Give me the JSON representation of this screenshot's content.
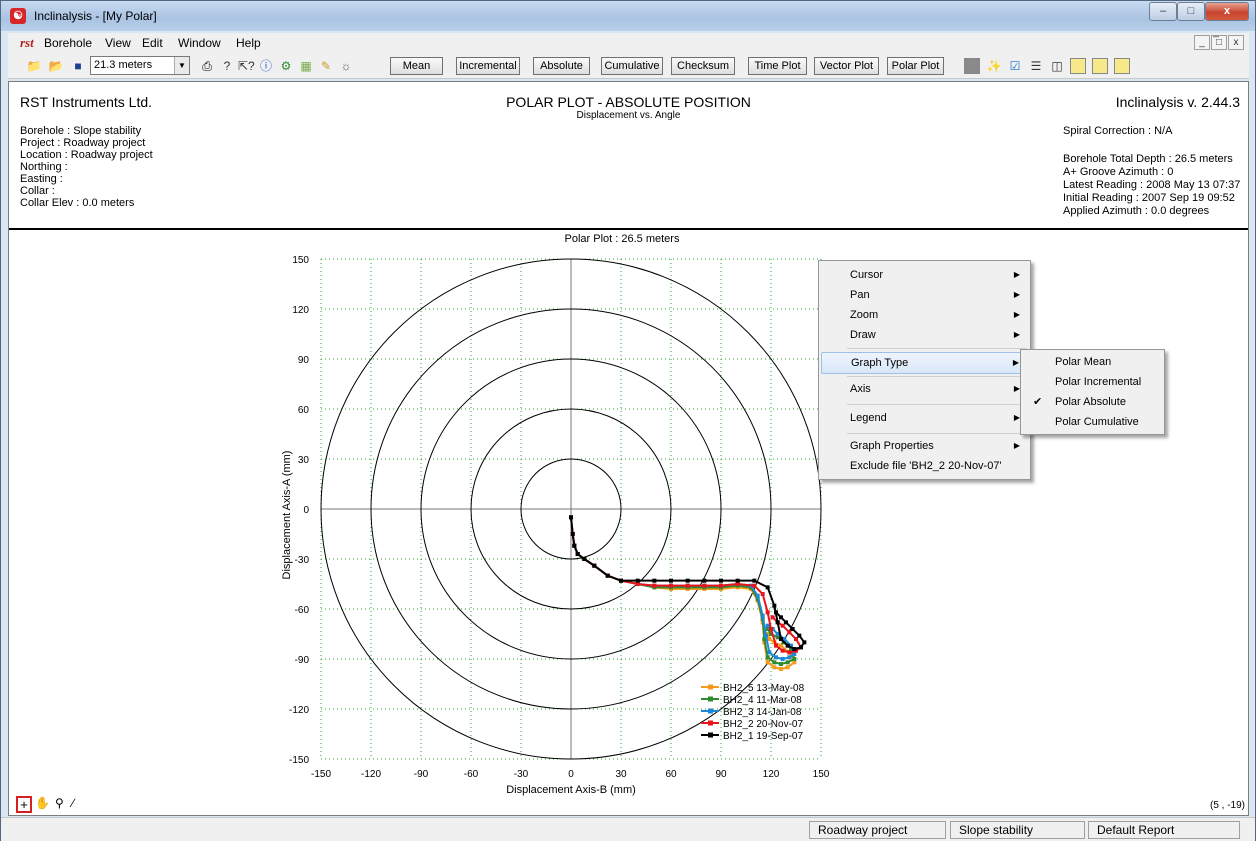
{
  "window": {
    "title": "Inclinalysis - [My Polar]",
    "app_icon": "inclinalysis-icon",
    "controls": {
      "minimize": "–",
      "maximize": "□",
      "close": "x"
    }
  },
  "menubar": {
    "logo": "rst",
    "items": [
      "Borehole",
      "View",
      "Edit",
      "Window",
      "Help"
    ],
    "mdi_controls": [
      "_",
      "̅□",
      "x"
    ]
  },
  "toolbar": {
    "depth_select": "21.3 meters",
    "buttons": [
      "Mean",
      "Incremental",
      "Absolute",
      "Cumulative",
      "Checksum",
      "Time Plot",
      "Vector Plot",
      "Polar Plot"
    ]
  },
  "report_header": {
    "company": "RST Instruments Ltd.",
    "title": "POLAR PLOT - ABSOLUTE POSITION",
    "subtitle": "Displacement vs. Angle",
    "version": "Inclinalysis v. 2.44.3",
    "left_lines": [
      "Borehole : Slope stability",
      "Project : Roadway project",
      "Location : Roadway project",
      "Northing :",
      "Easting :",
      "Collar :",
      "Collar Elev : 0.0 meters"
    ],
    "right_lines": [
      "Spiral Correction : N/A",
      "",
      "Borehole Total Depth : 26.5 meters",
      "A+ Groove Azimuth : 0",
      "Latest Reading : 2008 May 13 07:37",
      "Initial Reading : 2007 Sep 19 09:52",
      "Applied Azimuth : 0.0 degrees"
    ]
  },
  "chart_data": {
    "type": "scatter",
    "title": "Polar Plot :  26.5 meters",
    "xlabel": "Displacement Axis-B (mm)",
    "ylabel": "Displacement Axis-A (mm)",
    "xlim": [
      -150,
      150
    ],
    "ylim": [
      -150,
      150
    ],
    "x_ticks": [
      -150,
      -120,
      -90,
      -60,
      -30,
      0,
      30,
      60,
      90,
      120,
      150
    ],
    "y_ticks": [
      150,
      120,
      90,
      60,
      30,
      0,
      -30,
      -60,
      -90,
      -120,
      -150
    ],
    "rings": [
      30,
      60,
      90,
      120,
      150
    ],
    "grid": true,
    "legend_position": "bottom-right",
    "series": [
      {
        "name": "BH2_5 13-May-08",
        "color": "#f59a1b",
        "marker": "diamond",
        "x": [
          0,
          1,
          2,
          4,
          8,
          14,
          22,
          30,
          40,
          50,
          60,
          70,
          80,
          90,
          100,
          108,
          112,
          115,
          116,
          118,
          122,
          126,
          130,
          134,
          131,
          126,
          122,
          119,
          118
        ],
        "y": [
          -5,
          -15,
          -22,
          -27,
          -30,
          -34,
          -40,
          -43,
          -45,
          -47,
          -48,
          -48,
          -48,
          -48,
          -47,
          -48,
          -55,
          -68,
          -80,
          -92,
          -95,
          -96,
          -95,
          -92,
          -86,
          -82,
          -80,
          -78,
          -75
        ]
      },
      {
        "name": "BH2_4 11-Mar-08",
        "color": "#2e8b2e",
        "marker": "triangle",
        "x": [
          0,
          1,
          2,
          4,
          8,
          14,
          22,
          30,
          40,
          50,
          60,
          70,
          80,
          90,
          100,
          108,
          112,
          115,
          116,
          118,
          122,
          126,
          130,
          134,
          132,
          128,
          124,
          120,
          118
        ],
        "y": [
          -5,
          -15,
          -22,
          -27,
          -30,
          -34,
          -40,
          -43,
          -45,
          -47,
          -47,
          -47,
          -47,
          -47,
          -46,
          -47,
          -54,
          -66,
          -78,
          -89,
          -92,
          -93,
          -92,
          -90,
          -84,
          -80,
          -77,
          -75,
          -72
        ]
      },
      {
        "name": "BH2_3 14-Jan-08",
        "color": "#1e88d8",
        "marker": "square-open",
        "x": [
          0,
          1,
          2,
          4,
          8,
          14,
          22,
          30,
          40,
          50,
          60,
          70,
          80,
          90,
          100,
          108,
          112,
          115,
          117,
          119,
          123,
          127,
          131,
          134,
          132,
          128,
          124,
          121,
          118
        ],
        "y": [
          -5,
          -15,
          -22,
          -27,
          -30,
          -34,
          -40,
          -43,
          -45,
          -46,
          -46,
          -46,
          -46,
          -46,
          -45,
          -46,
          -52,
          -64,
          -76,
          -86,
          -89,
          -90,
          -89,
          -87,
          -82,
          -78,
          -75,
          -72,
          -70
        ]
      },
      {
        "name": "BH2_2 20-Nov-07",
        "color": "#e8141b",
        "marker": "triangle",
        "x": [
          0,
          1,
          2,
          4,
          8,
          14,
          22,
          30,
          40,
          50,
          60,
          70,
          80,
          90,
          100,
          110,
          115,
          118,
          120,
          123,
          127,
          131,
          135,
          138,
          135,
          131,
          127,
          124,
          121
        ],
        "y": [
          -5,
          -15,
          -22,
          -27,
          -30,
          -34,
          -40,
          -43,
          -45,
          -46,
          -46,
          -46,
          -46,
          -46,
          -45,
          -46,
          -51,
          -62,
          -72,
          -82,
          -85,
          -86,
          -85,
          -83,
          -78,
          -74,
          -70,
          -68,
          -65
        ]
      },
      {
        "name": "BH2_1 19-Sep-07",
        "color": "#000000",
        "marker": "diamond",
        "x": [
          0,
          1,
          2,
          4,
          8,
          14,
          22,
          30,
          40,
          50,
          60,
          70,
          80,
          90,
          100,
          110,
          118,
          122,
          124,
          126,
          130,
          134,
          138,
          140,
          137,
          133,
          129,
          126,
          123
        ],
        "y": [
          -5,
          -15,
          -22,
          -27,
          -30,
          -34,
          -40,
          -43,
          -43,
          -43,
          -43,
          -43,
          -43,
          -43,
          -43,
          -43,
          -47,
          -58,
          -68,
          -78,
          -82,
          -84,
          -83,
          -80,
          -76,
          -72,
          -68,
          -65,
          -62
        ]
      }
    ]
  },
  "context_menu": {
    "items": [
      {
        "label": "Cursor",
        "submenu": true
      },
      {
        "label": "Pan",
        "submenu": true
      },
      {
        "label": "Zoom",
        "submenu": true
      },
      {
        "label": "Draw",
        "submenu": true
      },
      {
        "label": "Graph Type",
        "submenu": true,
        "highlighted": true
      },
      {
        "label": "Axis",
        "submenu": true
      },
      {
        "label": "Legend",
        "submenu": true
      },
      {
        "label": "Graph Properties",
        "submenu": true
      },
      {
        "label": "Exclude file 'BH2_2 20-Nov-07'",
        "submenu": false
      }
    ],
    "graph_type_submenu": [
      {
        "label": "Polar Mean",
        "checked": false
      },
      {
        "label": "Polar Incremental",
        "checked": false
      },
      {
        "label": "Polar Absolute",
        "checked": true
      },
      {
        "label": "Polar Cumulative",
        "checked": false
      }
    ],
    "check_glyph": "✔"
  },
  "cursor_readout": "(5 , -19)",
  "statusbar": {
    "panels": [
      "Roadway project",
      "Slope stability",
      "Default Report"
    ]
  }
}
